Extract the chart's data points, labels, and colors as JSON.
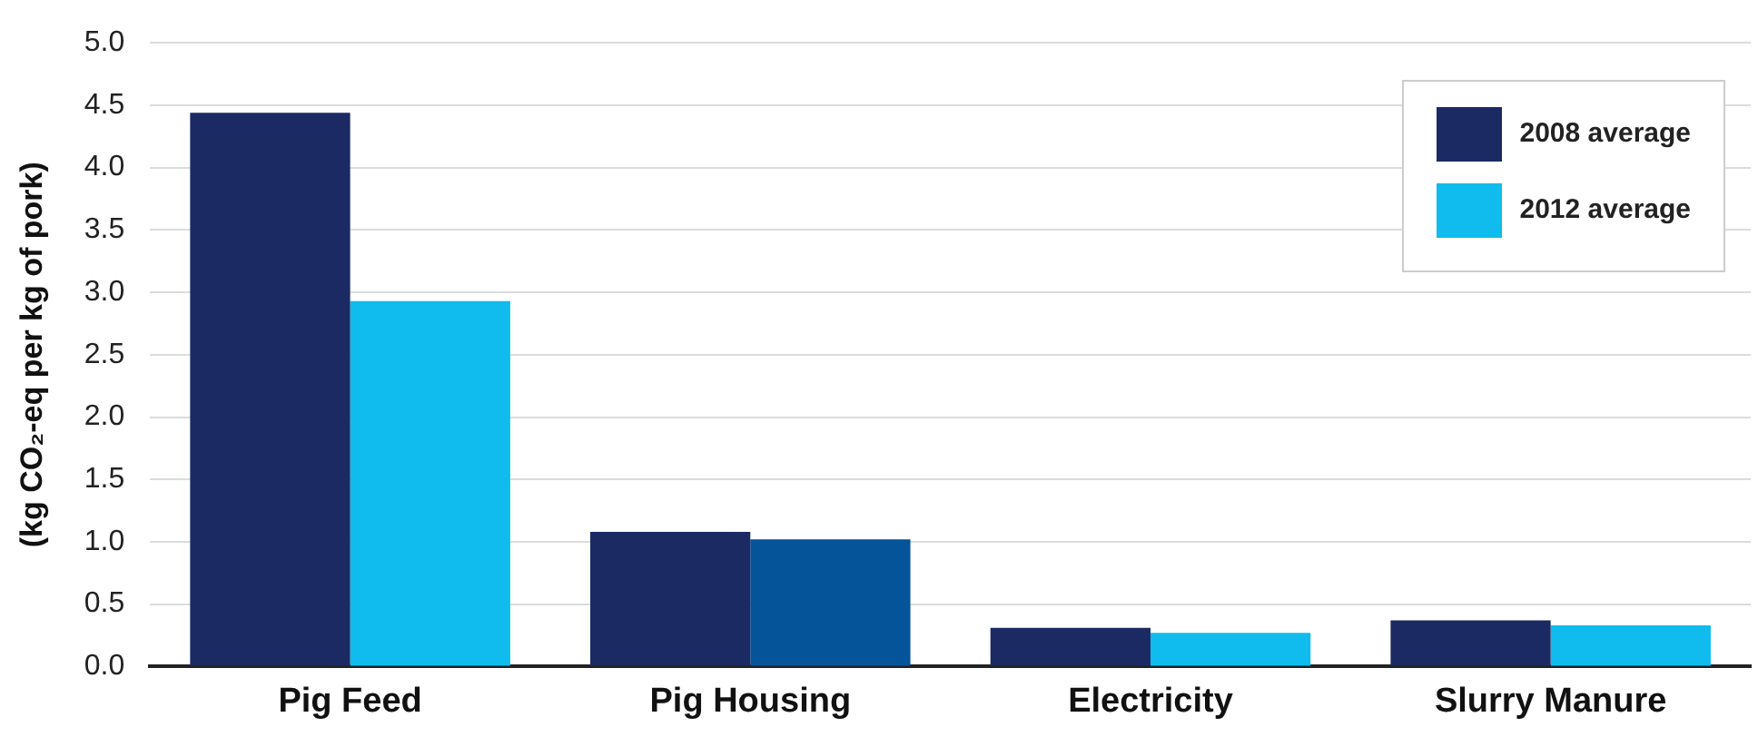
{
  "chart_data": {
    "type": "bar",
    "ylabel": "(kg CO₂-eq per kg of pork)",
    "categories": [
      "Pig Feed",
      "Pig Housing",
      "Electricity",
      "Slurry Manure"
    ],
    "series": [
      {
        "name": "2008 average",
        "color": "#1b2a63",
        "values": [
          4.44,
          1.08,
          0.31,
          0.37
        ]
      },
      {
        "name": "2012 average",
        "color": "#10bbed",
        "colors": [
          "#10bbed",
          "#05549a",
          "#10bbed",
          "#10bbed"
        ],
        "values": [
          2.93,
          1.02,
          0.27,
          0.33
        ]
      }
    ],
    "ylim": [
      0,
      5
    ],
    "yticks": [
      {
        "value": 0,
        "label": "0.0"
      },
      {
        "value": 0.5,
        "label": "0.5"
      },
      {
        "value": 1,
        "label": "1.0"
      },
      {
        "value": 1.5,
        "label": "1.5"
      },
      {
        "value": 2,
        "label": "2.0"
      },
      {
        "value": 2.5,
        "label": "2.5"
      },
      {
        "value": 3,
        "label": "3.0"
      },
      {
        "value": 3.5,
        "label": "3.5"
      },
      {
        "value": 4,
        "label": "4.0"
      },
      {
        "value": 4.5,
        "label": "4.5"
      },
      {
        "value": 5,
        "label": "5.0"
      }
    ],
    "grid": "y",
    "legend": "top right"
  }
}
